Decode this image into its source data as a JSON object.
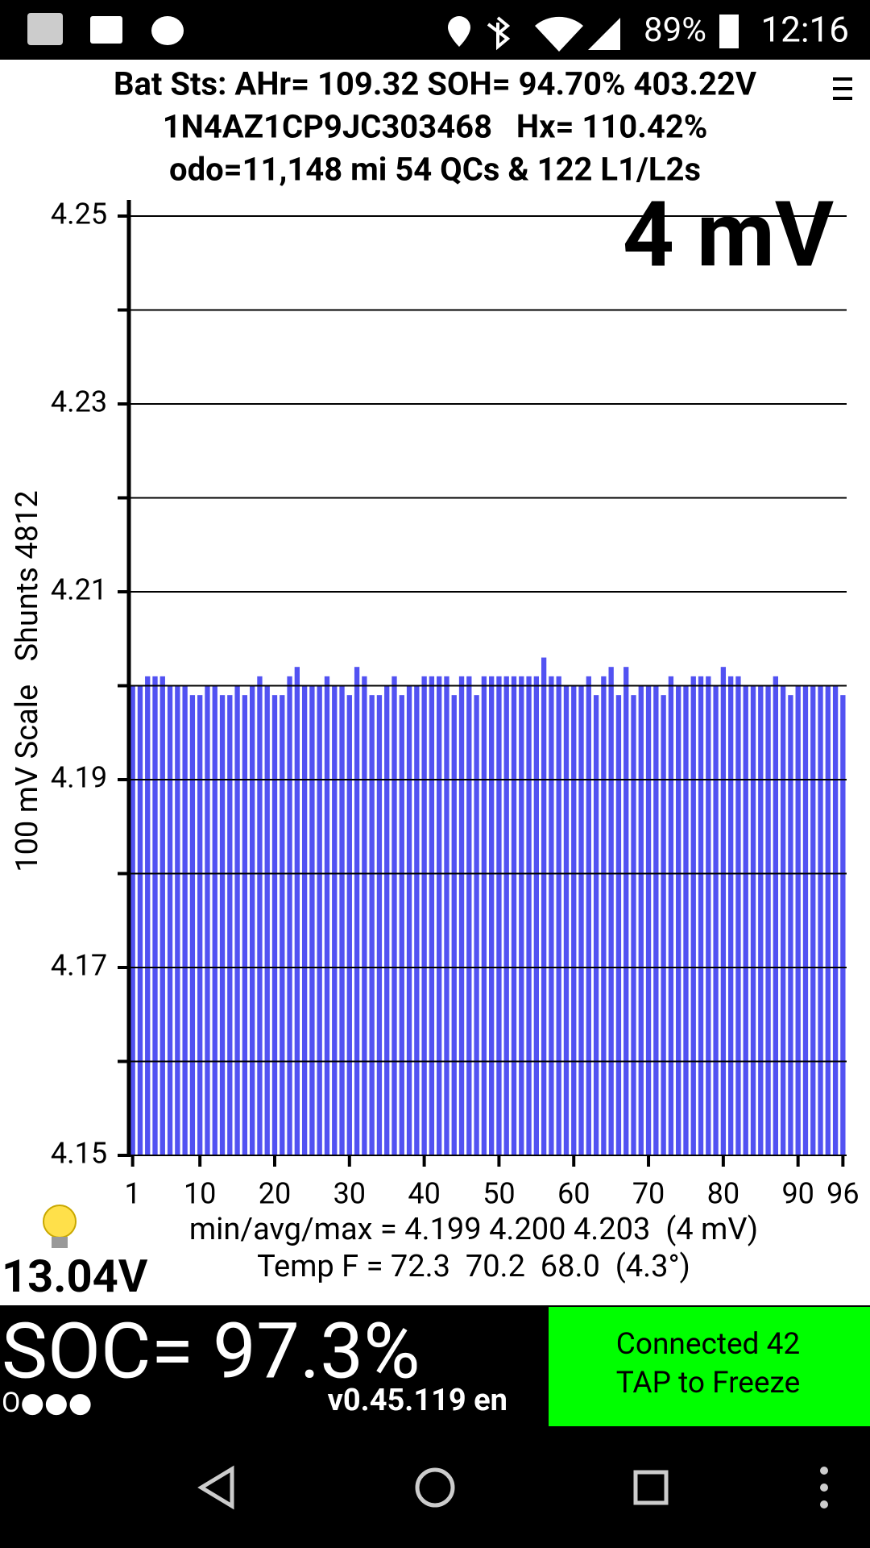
{
  "status_bar": {
    "battery": "89%",
    "time": "12:16"
  },
  "header": {
    "lines": [
      "Bat Sts: AHr= 109.32 SOH= 94.70% 403.22V",
      "1N4AZ1CP9JC303468   Hx= 110.42%",
      "odo=11,148 mi 54 QCs & 122 L1/L2s"
    ]
  },
  "chart_data": {
    "type": "bar",
    "annotation": "4 mV",
    "y_label": "100 mV Scale   Shunts 4812",
    "categories": [
      1,
      null,
      null,
      null,
      null,
      null,
      null,
      null,
      null,
      10,
      null,
      null,
      null,
      null,
      null,
      null,
      null,
      null,
      null,
      20,
      null,
      null,
      null,
      null,
      null,
      null,
      null,
      null,
      null,
      30,
      null,
      null,
      null,
      null,
      null,
      null,
      null,
      null,
      null,
      40,
      null,
      null,
      null,
      null,
      null,
      null,
      null,
      null,
      null,
      50,
      null,
      null,
      null,
      null,
      null,
      null,
      null,
      null,
      null,
      60,
      null,
      null,
      null,
      null,
      null,
      null,
      null,
      null,
      null,
      70,
      null,
      null,
      null,
      null,
      null,
      null,
      null,
      null,
      null,
      80,
      null,
      null,
      null,
      null,
      null,
      null,
      null,
      null,
      null,
      90,
      null,
      null,
      null,
      null,
      null,
      96
    ],
    "values": [
      4.2,
      4.2,
      4.201,
      4.201,
      4.201,
      4.2,
      4.2,
      4.2,
      4.199,
      4.199,
      4.2,
      4.2,
      4.199,
      4.199,
      4.2,
      4.199,
      4.2,
      4.201,
      4.2,
      4.199,
      4.199,
      4.201,
      4.202,
      4.2,
      4.2,
      4.2,
      4.201,
      4.2,
      4.2,
      4.199,
      4.202,
      4.201,
      4.199,
      4.199,
      4.2,
      4.201,
      4.199,
      4.2,
      4.2,
      4.201,
      4.201,
      4.201,
      4.201,
      4.199,
      4.201,
      4.201,
      4.199,
      4.201,
      4.201,
      4.201,
      4.201,
      4.201,
      4.201,
      4.201,
      4.201,
      4.203,
      4.201,
      4.201,
      4.2,
      4.2,
      4.2,
      4.201,
      4.199,
      4.201,
      4.202,
      4.199,
      4.202,
      4.199,
      4.2,
      4.2,
      4.2,
      4.199,
      4.201,
      4.2,
      4.2,
      4.201,
      4.201,
      4.201,
      4.2,
      4.202,
      4.201,
      4.201,
      4.2,
      4.2,
      4.2,
      4.2,
      4.201,
      4.2,
      4.199,
      4.2,
      4.2,
      4.2,
      4.2,
      4.2,
      4.2,
      4.199
    ],
    "color": "#5252f2",
    "ylim": [
      4.15,
      4.25
    ],
    "yticks": [
      4.15,
      4.17,
      4.19,
      4.21,
      4.23,
      4.25
    ],
    "minor_yticks": [
      4.16,
      4.18,
      4.2,
      4.22,
      4.24
    ],
    "grid": true
  },
  "stats": {
    "lines": [
      "min/avg/max = 4.199 4.200 4.203  (4 mV)",
      "Temp F = 72.3  70.2  68.0  (4.3°)"
    ]
  },
  "pack_voltage": "13.04V",
  "soc": "SOC= 97.3%",
  "indicator": "O●●●",
  "version": "v0.45.119 en",
  "connection": {
    "lines": [
      "Connected 42",
      "TAP to Freeze"
    ]
  }
}
